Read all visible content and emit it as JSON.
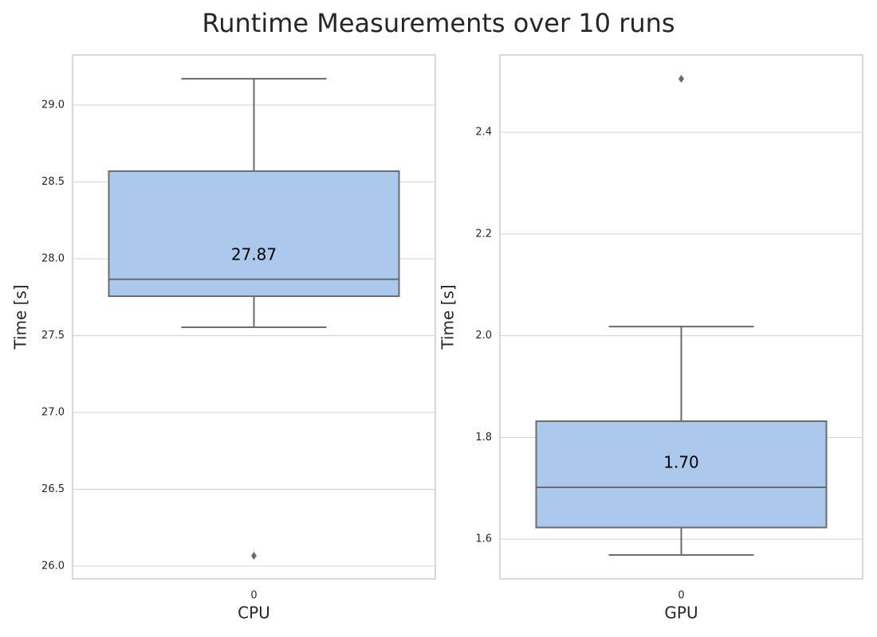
{
  "title": "Runtime Measurements over 10 runs",
  "chart_data": [
    {
      "type": "box",
      "xlabel": "CPU",
      "ylabel": "Time [s]",
      "categories": [
        "0"
      ],
      "color": "#abc9ed",
      "grid": true,
      "boxes": [
        {
          "whislo": 27.554,
          "q1": 27.756,
          "med": 27.866,
          "q3": 28.57,
          "whishi": 29.171,
          "fliers": [
            26.067
          ],
          "med_label": "27.87"
        }
      ],
      "ylim": [
        25.917,
        29.326
      ],
      "yticks": [
        {
          "value": 26,
          "label": "26.0"
        },
        26.5,
        {
          "value": 27,
          "label": "27.0"
        },
        27.5,
        {
          "value": 28,
          "label": "28.0"
        },
        28.5,
        {
          "value": 29,
          "label": "29.0"
        }
      ]
    },
    {
      "type": "box",
      "xlabel": "GPU",
      "ylabel": "Time [s]",
      "categories": [
        "0"
      ],
      "color": "#abc9ed",
      "grid": true,
      "boxes": [
        {
          "whislo": 1.569,
          "q1": 1.623,
          "med": 1.702,
          "q3": 1.832,
          "whishi": 2.018,
          "fliers": [
            2.505
          ],
          "med_label": "1.70"
        }
      ],
      "ylim": [
        1.522,
        2.552
      ],
      "yticks": [
        1.6,
        1.8,
        {
          "value": 2,
          "label": "2.0"
        },
        2.2,
        2.4
      ]
    }
  ]
}
